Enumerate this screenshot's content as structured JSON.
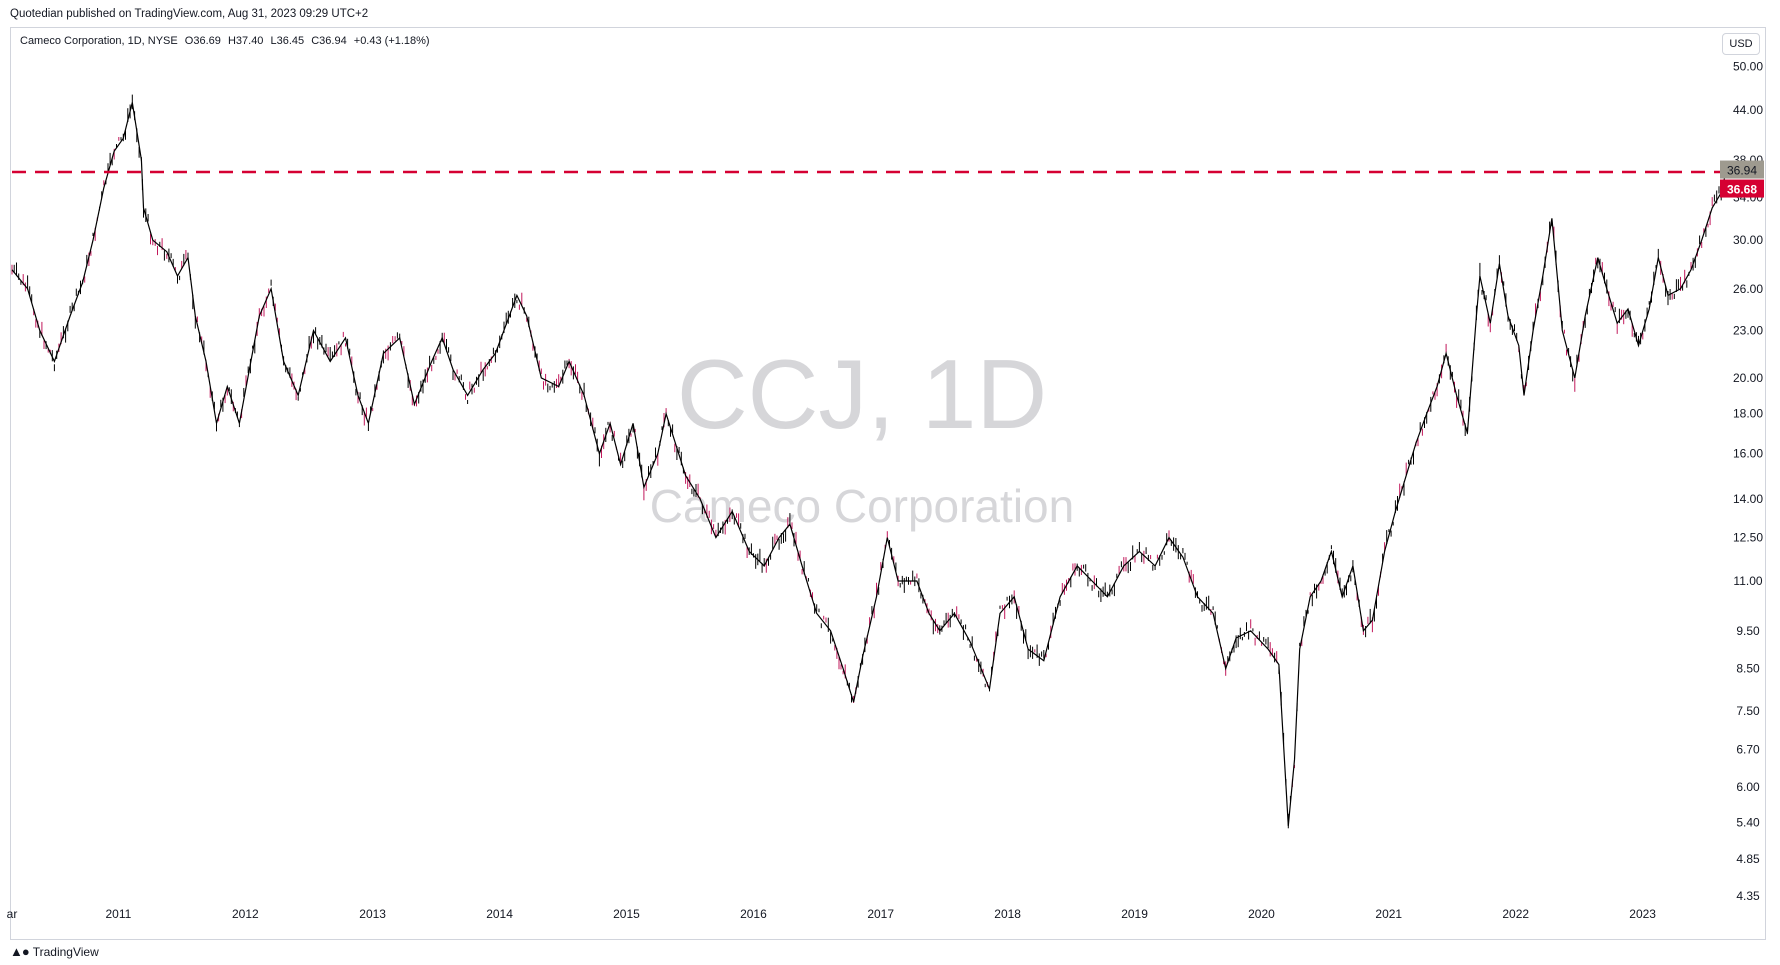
{
  "header": {
    "publish_line": "Quotedian published on TradingView.com, Aug 31, 2023 09:29 UTC+2"
  },
  "legend": {
    "name": "Cameco Corporation, 1D, NYSE",
    "open": "O36.69",
    "high": "H37.40",
    "low": "L36.45",
    "close": "C36.94",
    "change": "+0.43 (+1.18%)"
  },
  "currency_label": "USD",
  "watermark": {
    "symbol": "CCJ, 1D",
    "company": "Cameco Corporation"
  },
  "footer": {
    "brand": "TradingView",
    "icon": "tradingview-logo-icon"
  },
  "colors": {
    "candle": "#000000",
    "down_accent": "#c2185b",
    "resistance_line": "#d50032",
    "last_price_tag": "#9e9a8f",
    "level_tag": "#d50032",
    "watermark": "#d6d6d9",
    "axis_text": "#131722"
  },
  "chart_data": {
    "type": "line",
    "title": "",
    "xlabel": "",
    "ylabel": "",
    "scale": "log",
    "ylim": [
      4.3,
      51
    ],
    "xlim": [
      "2010-03-01",
      "2023-09-15"
    ],
    "y_ticks": [
      "50.00",
      "44.00",
      "38.00",
      "34.00",
      "30.00",
      "26.00",
      "23.00",
      "20.00",
      "18.00",
      "16.00",
      "14.00",
      "12.50",
      "11.00",
      "9.50",
      "8.50",
      "7.50",
      "6.70",
      "6.00",
      "5.40",
      "4.85",
      "4.35"
    ],
    "x_ticks": [
      {
        "label": "ar",
        "date": "2010-03-01"
      },
      {
        "label": "2011",
        "date": "2011-01-01"
      },
      {
        "label": "2012",
        "date": "2012-01-01"
      },
      {
        "label": "2013",
        "date": "2013-01-01"
      },
      {
        "label": "2014",
        "date": "2014-01-01"
      },
      {
        "label": "2015",
        "date": "2015-01-01"
      },
      {
        "label": "2016",
        "date": "2016-01-01"
      },
      {
        "label": "2017",
        "date": "2017-01-01"
      },
      {
        "label": "2018",
        "date": "2018-01-01"
      },
      {
        "label": "2019",
        "date": "2019-01-01"
      },
      {
        "label": "2020",
        "date": "2020-01-01"
      },
      {
        "label": "2021",
        "date": "2021-01-01"
      },
      {
        "label": "2022",
        "date": "2022-01-01"
      },
      {
        "label": "2023",
        "date": "2023-01-01"
      }
    ],
    "last_price": {
      "label": "36.94",
      "value": 36.94
    },
    "horizontal_level": {
      "label": "36.68",
      "value": 36.68,
      "style": "dashed"
    },
    "series": [
      {
        "points": [
          [
            "2010-03-01",
            27.5
          ],
          [
            "2010-04-15",
            26.0
          ],
          [
            "2010-05-20",
            23.0
          ],
          [
            "2010-07-01",
            21.0
          ],
          [
            "2010-08-15",
            24.0
          ],
          [
            "2010-09-20",
            26.5
          ],
          [
            "2010-10-20",
            30.0
          ],
          [
            "2010-11-20",
            35.0
          ],
          [
            "2010-12-20",
            39.0
          ],
          [
            "2011-01-15",
            40.5
          ],
          [
            "2011-02-10",
            45.0
          ],
          [
            "2011-03-08",
            38.0
          ],
          [
            "2011-03-14",
            33.0
          ],
          [
            "2011-04-10",
            30.0
          ],
          [
            "2011-05-20",
            29.0
          ],
          [
            "2011-06-20",
            27.0
          ],
          [
            "2011-07-20",
            28.5
          ],
          [
            "2011-08-10",
            24.0
          ],
          [
            "2011-09-10",
            21.0
          ],
          [
            "2011-10-10",
            17.5
          ],
          [
            "2011-11-10",
            19.5
          ],
          [
            "2011-12-15",
            17.5
          ],
          [
            "2012-02-10",
            24.0
          ],
          [
            "2012-03-15",
            26.0
          ],
          [
            "2012-04-20",
            21.0
          ],
          [
            "2012-06-01",
            19.0
          ],
          [
            "2012-07-15",
            23.0
          ],
          [
            "2012-09-01",
            21.0
          ],
          [
            "2012-10-15",
            22.5
          ],
          [
            "2012-11-20",
            19.0
          ],
          [
            "2012-12-20",
            17.5
          ],
          [
            "2013-02-01",
            21.5
          ],
          [
            "2013-03-20",
            22.5
          ],
          [
            "2013-05-01",
            18.5
          ],
          [
            "2013-06-20",
            21.0
          ],
          [
            "2013-07-20",
            22.5
          ],
          [
            "2013-08-20",
            20.5
          ],
          [
            "2013-10-01",
            19.0
          ],
          [
            "2013-11-15",
            20.5
          ],
          [
            "2013-12-20",
            21.5
          ],
          [
            "2014-02-20",
            25.5
          ],
          [
            "2014-03-20",
            24.0
          ],
          [
            "2014-05-01",
            20.0
          ],
          [
            "2014-06-20",
            19.5
          ],
          [
            "2014-07-20",
            21.0
          ],
          [
            "2014-09-01",
            19.0
          ],
          [
            "2014-10-15",
            16.0
          ],
          [
            "2014-11-15",
            17.5
          ],
          [
            "2014-12-15",
            15.5
          ],
          [
            "2015-01-20",
            17.5
          ],
          [
            "2015-02-20",
            14.5
          ],
          [
            "2015-04-01",
            16.0
          ],
          [
            "2015-04-25",
            18.0
          ],
          [
            "2015-06-20",
            15.0
          ],
          [
            "2015-08-01",
            14.0
          ],
          [
            "2015-09-15",
            12.5
          ],
          [
            "2015-11-01",
            13.5
          ],
          [
            "2015-12-20",
            12.0
          ],
          [
            "2016-02-01",
            11.5
          ],
          [
            "2016-03-15",
            12.5
          ],
          [
            "2016-04-15",
            13.0
          ],
          [
            "2016-05-20",
            11.5
          ],
          [
            "2016-07-01",
            10.0
          ],
          [
            "2016-08-10",
            9.5
          ],
          [
            "2016-09-15",
            8.5
          ],
          [
            "2016-10-15",
            7.7
          ],
          [
            "2016-11-10",
            8.8
          ],
          [
            "2016-12-20",
            10.5
          ],
          [
            "2017-01-20",
            12.5
          ],
          [
            "2017-02-20",
            11.0
          ],
          [
            "2017-04-15",
            11.0
          ],
          [
            "2017-05-20",
            10.0
          ],
          [
            "2017-06-20",
            9.5
          ],
          [
            "2017-08-01",
            10.0
          ],
          [
            "2017-09-15",
            9.2
          ],
          [
            "2017-11-10",
            8.0
          ],
          [
            "2017-12-10",
            10.0
          ],
          [
            "2018-01-20",
            10.5
          ],
          [
            "2018-03-01",
            9.0
          ],
          [
            "2018-04-15",
            8.7
          ],
          [
            "2018-06-01",
            10.5
          ],
          [
            "2018-07-20",
            11.5
          ],
          [
            "2018-09-01",
            11.0
          ],
          [
            "2018-10-15",
            10.5
          ],
          [
            "2018-12-01",
            11.5
          ],
          [
            "2019-01-15",
            12.0
          ],
          [
            "2019-03-01",
            11.5
          ],
          [
            "2019-04-10",
            12.5
          ],
          [
            "2019-05-20",
            11.8
          ],
          [
            "2019-07-01",
            10.5
          ],
          [
            "2019-08-15",
            10.0
          ],
          [
            "2019-09-20",
            8.5
          ],
          [
            "2019-10-20",
            9.3
          ],
          [
            "2019-12-01",
            9.5
          ],
          [
            "2020-01-20",
            9.0
          ],
          [
            "2020-02-20",
            8.6
          ],
          [
            "2020-03-18",
            5.35
          ],
          [
            "2020-04-05",
            6.5
          ],
          [
            "2020-04-20",
            9.0
          ],
          [
            "2020-05-20",
            10.5
          ],
          [
            "2020-06-20",
            11.0
          ],
          [
            "2020-07-20",
            12.0
          ],
          [
            "2020-08-20",
            10.5
          ],
          [
            "2020-09-20",
            11.5
          ],
          [
            "2020-10-20",
            9.5
          ],
          [
            "2020-11-15",
            9.8
          ],
          [
            "2020-12-20",
            12.0
          ],
          [
            "2021-01-20",
            13.5
          ],
          [
            "2021-02-20",
            15.0
          ],
          [
            "2021-03-20",
            16.5
          ],
          [
            "2021-04-20",
            18.0
          ],
          [
            "2021-05-20",
            19.5
          ],
          [
            "2021-06-15",
            21.5
          ],
          [
            "2021-07-15",
            19.0
          ],
          [
            "2021-08-15",
            17.0
          ],
          [
            "2021-09-10",
            24.0
          ],
          [
            "2021-09-20",
            27.0
          ],
          [
            "2021-10-20",
            23.5
          ],
          [
            "2021-11-15",
            28.0
          ],
          [
            "2021-12-10",
            24.0
          ],
          [
            "2022-01-10",
            22.0
          ],
          [
            "2022-01-25",
            19.0
          ],
          [
            "2022-02-20",
            23.0
          ],
          [
            "2022-03-20",
            27.0
          ],
          [
            "2022-04-15",
            32.0
          ],
          [
            "2022-05-15",
            23.0
          ],
          [
            "2022-06-20",
            20.0
          ],
          [
            "2022-07-20",
            24.0
          ],
          [
            "2022-08-25",
            28.5
          ],
          [
            "2022-09-20",
            26.0
          ],
          [
            "2022-10-20",
            23.5
          ],
          [
            "2022-11-20",
            24.5
          ],
          [
            "2022-12-20",
            22.0
          ],
          [
            "2023-01-20",
            24.5
          ],
          [
            "2023-02-15",
            28.5
          ],
          [
            "2023-03-15",
            25.5
          ],
          [
            "2023-04-20",
            26.0
          ],
          [
            "2023-05-20",
            27.5
          ],
          [
            "2023-06-20",
            30.0
          ],
          [
            "2023-07-20",
            33.0
          ],
          [
            "2023-08-15",
            34.5
          ],
          [
            "2023-08-30",
            36.94
          ]
        ]
      }
    ]
  }
}
